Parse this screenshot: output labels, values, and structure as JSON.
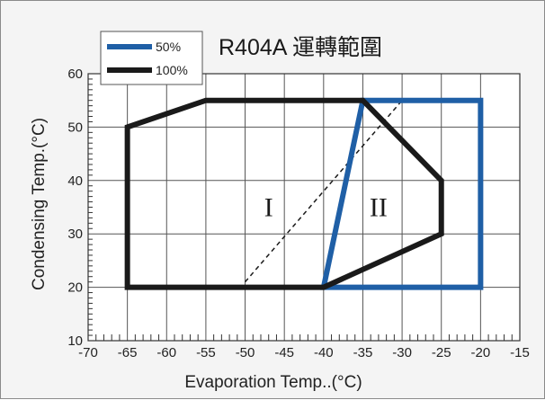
{
  "chart_data": {
    "type": "line",
    "title": "R404A 運轉範圍",
    "xlabel": "Evaporation Temp..(°C)",
    "ylabel": "Condensing Temp.(°C)",
    "xlim": [
      -70,
      -15
    ],
    "ylim": [
      10,
      60
    ],
    "x_ticks": [
      -70,
      -65,
      -60,
      -55,
      -50,
      -45,
      -40,
      -35,
      -30,
      -25,
      -20,
      -15
    ],
    "y_ticks": [
      10,
      20,
      30,
      40,
      50,
      60
    ],
    "x_tick_labels": [
      "-70",
      "-65",
      "-60",
      "-55",
      "-50",
      "-45",
      "-40",
      "-35",
      "-30",
      "-25",
      "-20",
      "-15"
    ],
    "y_tick_labels": [
      "10",
      "20",
      "30",
      "40",
      "50",
      "60"
    ],
    "grid": true,
    "legend_position": "top-left",
    "series": [
      {
        "name": "50%",
        "color": "#1f5fa6",
        "closed": true,
        "points": [
          [
            -40,
            20
          ],
          [
            -20,
            20
          ],
          [
            -20,
            55
          ],
          [
            -35,
            55
          ]
        ]
      },
      {
        "name": "100%",
        "color": "#1a1a1a",
        "closed": true,
        "points": [
          [
            -65,
            20
          ],
          [
            -40,
            20
          ],
          [
            -25,
            30
          ],
          [
            -25,
            40
          ],
          [
            -35,
            55
          ],
          [
            -55,
            55
          ],
          [
            -65,
            50
          ]
        ]
      }
    ],
    "divider": {
      "points": [
        [
          -50,
          21
        ],
        [
          -30,
          55
        ]
      ],
      "style": "dashed"
    },
    "region_labels": [
      {
        "text": "I",
        "x": -47,
        "y": 35
      },
      {
        "text": "II",
        "x": -33,
        "y": 35
      }
    ]
  }
}
